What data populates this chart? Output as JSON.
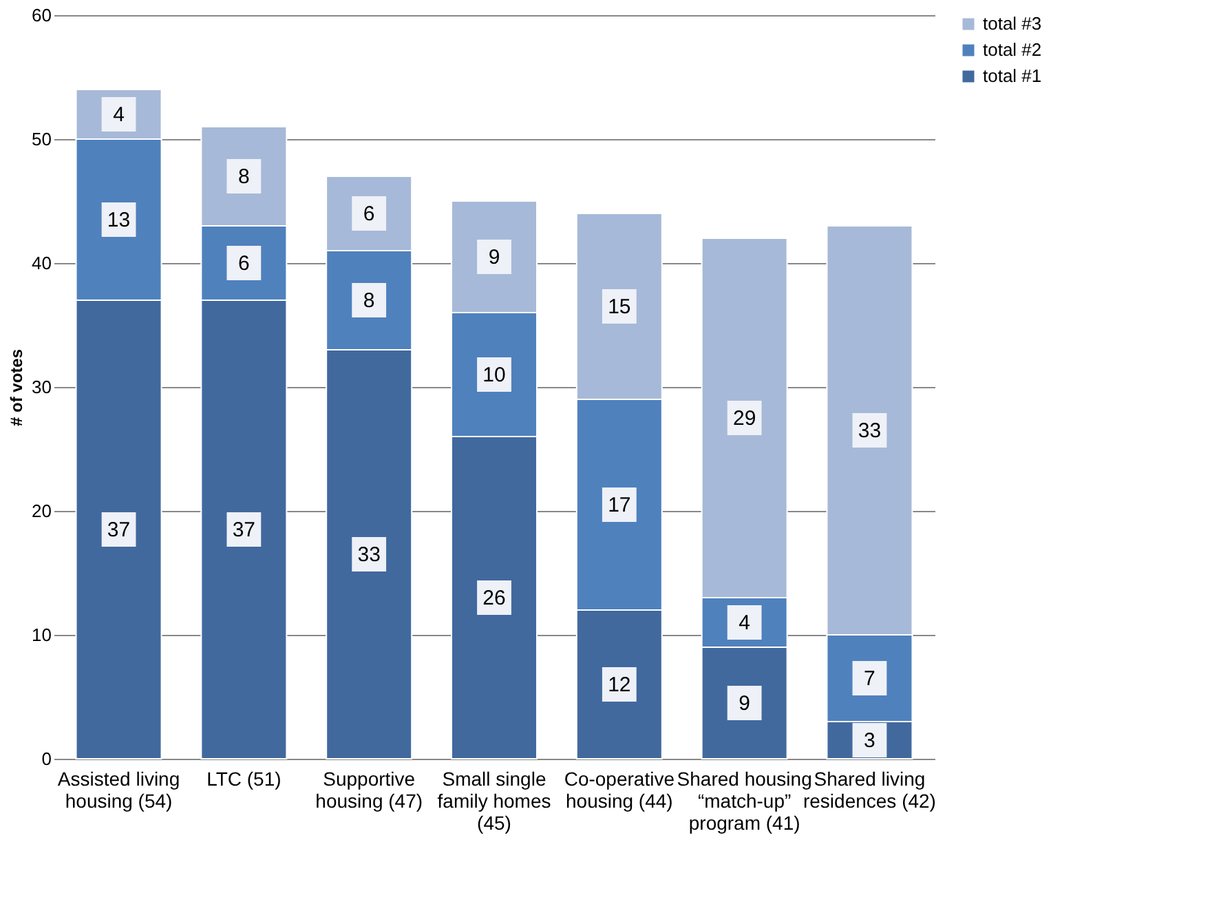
{
  "chart_data": {
    "type": "bar",
    "stacked": true,
    "ylabel": "# of votes",
    "categories": [
      "Assisted living housing (54)",
      "LTC (51)",
      "Supportive housing (47)",
      "Small single family homes (45)",
      "Co-operative housing (44)",
      "Shared housing “match-up” program (41)",
      "Shared living residences (42)"
    ],
    "series": [
      {
        "name": "total #1",
        "color": "#41699e",
        "values": [
          37,
          37,
          33,
          26,
          12,
          9,
          3
        ]
      },
      {
        "name": "total #2",
        "color": "#4f81bd",
        "values": [
          13,
          6,
          8,
          10,
          17,
          4,
          7
        ]
      },
      {
        "name": "total #3",
        "color": "#a7b9d8",
        "values": [
          4,
          8,
          6,
          9,
          15,
          29,
          33
        ]
      }
    ],
    "ylim": [
      0,
      60
    ],
    "yticks": [
      0,
      10,
      20,
      30,
      40,
      50,
      60
    ],
    "grid": "y",
    "legend": "right",
    "data_labels": true
  }
}
